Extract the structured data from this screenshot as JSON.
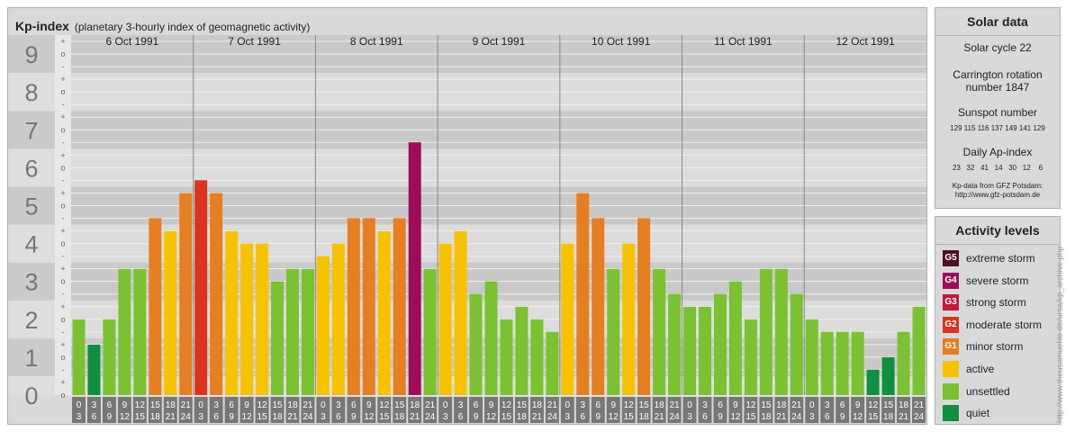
{
  "header": {
    "title": "Kp-index",
    "subtitle": "(planetary 3-hourly index of geomagnetic activity)"
  },
  "chart_data": {
    "type": "bar",
    "ylim": [
      0,
      9
    ],
    "y_ticks": [
      "0",
      "1",
      "2",
      "3",
      "4",
      "5",
      "6",
      "7",
      "8",
      "9"
    ],
    "minor_ticks": [
      "-",
      "o",
      "+"
    ],
    "days": [
      "6 Oct 1991",
      "7 Oct 1991",
      "8 Oct 1991",
      "9 Oct 1991",
      "10 Oct 1991",
      "11 Oct 1991",
      "12 Oct 1991"
    ],
    "interval_labels": [
      [
        "0",
        "3"
      ],
      [
        "3",
        "6"
      ],
      [
        "6",
        "9"
      ],
      [
        "9",
        "12"
      ],
      [
        "12",
        "15"
      ],
      [
        "15",
        "18"
      ],
      [
        "18",
        "21"
      ],
      [
        "21",
        "24"
      ]
    ],
    "values": [
      [
        2,
        1.33,
        2,
        3.33,
        3.33,
        4.67,
        4.33,
        5.33
      ],
      [
        5.67,
        5.33,
        4.33,
        4,
        4,
        3,
        3.33,
        3.33
      ],
      [
        3.67,
        4,
        4.67,
        4.67,
        4.33,
        4.67,
        6.67,
        3.33
      ],
      [
        4,
        4.33,
        2.67,
        3,
        2,
        2.33,
        2,
        1.67
      ],
      [
        4,
        5.33,
        4.67,
        3.33,
        4,
        4.67,
        3.33,
        2.67
      ],
      [
        2.33,
        2.33,
        2.67,
        3,
        2,
        3.33,
        3.33,
        2.67
      ],
      [
        2,
        1.67,
        1.67,
        1.67,
        0.67,
        1,
        1.67,
        2.33
      ]
    ],
    "colors": {
      "quiet": "#0f8f3f",
      "unsettled": "#7ac231",
      "active": "#f7c300",
      "minor": "#e67e22",
      "moderate": "#d9341f",
      "strong": "#c01a3d",
      "severe": "#9c0c5a",
      "extreme": "#4d0f23"
    }
  },
  "solar": {
    "title": "Solar data",
    "cycle": "Solar cycle 22",
    "carrington_line1": "Carrington rotation",
    "carrington_line2": "number 1847",
    "sunspot_title": "Sunspot number",
    "sunspot_values": "129 115 116 137 149 141 129",
    "ap_title": "Daily Ap-index",
    "ap_values": "23   32   41   14   30   12    6",
    "source_line1": "Kp-data from GFZ Potsdam:",
    "source_line2": "http://www.gfz-potsdam.de"
  },
  "activity": {
    "title": "Activity levels",
    "levels": [
      {
        "badge": "G5",
        "label": "extreme storm",
        "color": "#4d0f23"
      },
      {
        "badge": "G4",
        "label": "severe storm",
        "color": "#9c0c5a"
      },
      {
        "badge": "G3",
        "label": "strong storm",
        "color": "#c01a3d"
      },
      {
        "badge": "G2",
        "label": "moderate storm",
        "color": "#d9341f"
      },
      {
        "badge": "G1",
        "label": "minor storm",
        "color": "#e67e22"
      },
      {
        "badge": "",
        "label": "active",
        "color": "#f7c300"
      },
      {
        "badge": "",
        "label": "unsettled",
        "color": "#7ac231"
      },
      {
        "badge": "",
        "label": "quiet",
        "color": "#0f8f3f"
      }
    ]
  },
  "credit": "http://www.theusamuehle.de/ursa/kp_archive.php"
}
